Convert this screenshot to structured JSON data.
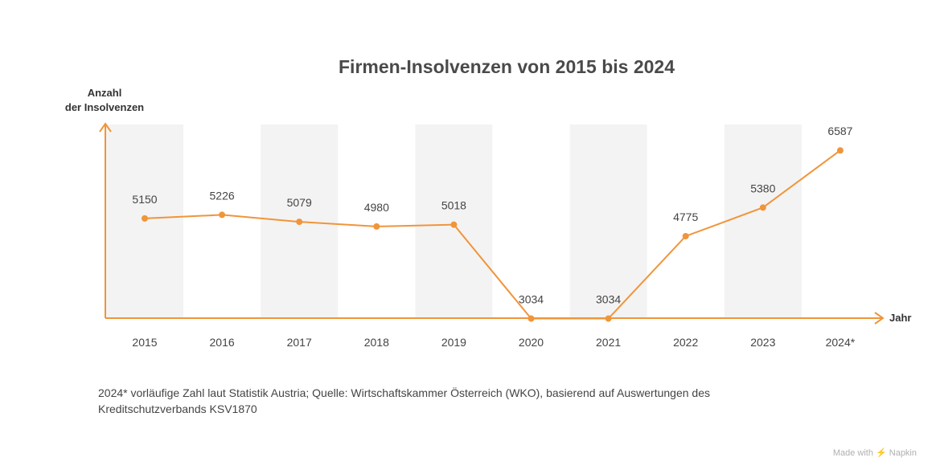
{
  "chart_data": {
    "type": "line",
    "title": "Firmen-Insolvenzen von 2015 bis 2024",
    "ylabel_line1": "Anzahl",
    "ylabel_line2": "der Insolvenzen",
    "xlabel": "Jahr",
    "categories": [
      "2015",
      "2016",
      "2017",
      "2018",
      "2019",
      "2020",
      "2021",
      "2022",
      "2023",
      "2024*"
    ],
    "values": [
      5150,
      5226,
      5079,
      4980,
      5018,
      3034,
      3034,
      4775,
      5380,
      6587
    ],
    "ylim": [
      2500,
      8000
    ],
    "grid": false,
    "colors": {
      "line": "#f0953a",
      "band": "#f3f3f3",
      "axis": "#f0953a"
    }
  },
  "footnote": "2024* vorläufige Zahl laut Statistik Austria; Quelle: Wirtschaftskammer Österreich (WKO), basierend auf Auswertungen des Kreditschutzverbands KSV1870",
  "credit": "Made with ⚡ Napkin"
}
